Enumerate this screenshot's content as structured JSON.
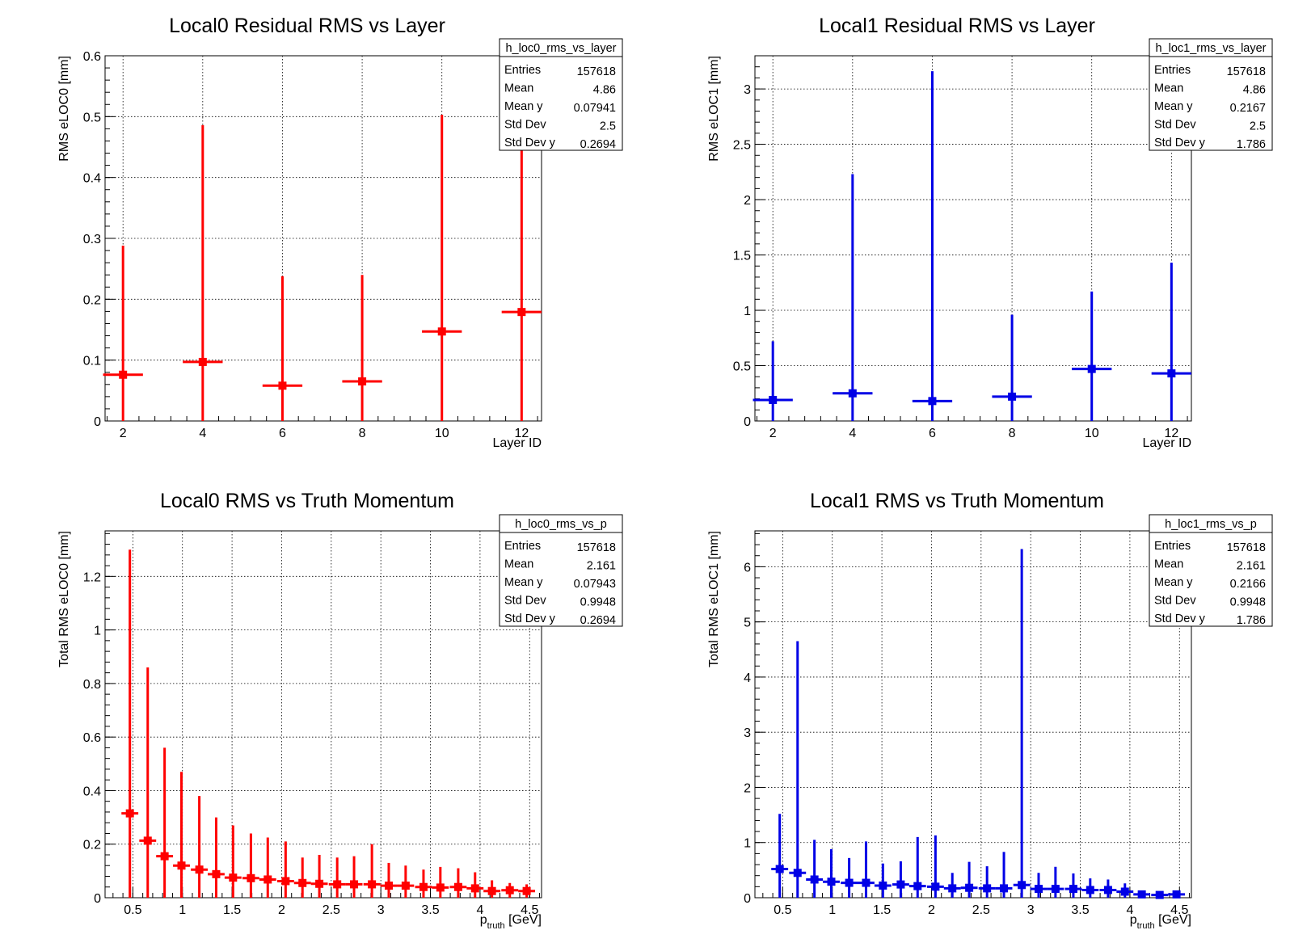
{
  "colors": {
    "red": "#ff0000",
    "blue": "#0000e6",
    "frame": "#000000",
    "grid": "#000000"
  },
  "chart_data": [
    {
      "type": "scatter",
      "id": "loc0-layer",
      "title": "Local0 Residual RMS vs Layer",
      "xlabel": "Layer ID",
      "ylabel": "RMS eLOC0 [mm]",
      "xlim": [
        1.55,
        12.5
      ],
      "ylim": [
        0,
        0.6
      ],
      "xticks": [
        "2",
        "4",
        "6",
        "8",
        "10",
        "12"
      ],
      "xtick_values": [
        2,
        4,
        6,
        8,
        10,
        12
      ],
      "yticks": [
        "0",
        "0.1",
        "0.2",
        "0.3",
        "0.4",
        "0.5",
        "0.6"
      ],
      "ytick_values": [
        0,
        0.1,
        0.2,
        0.3,
        0.4,
        0.5,
        0.6
      ],
      "grid": true,
      "color": "red",
      "stats": {
        "name": "h_loc0_rms_vs_layer",
        "rows": [
          [
            "Entries",
            "157618"
          ],
          [
            "Mean",
            "4.86"
          ],
          [
            "Mean y",
            "0.07941"
          ],
          [
            "Std Dev",
            "2.5"
          ],
          [
            "Std Dev y",
            "0.2694"
          ]
        ]
      },
      "points": [
        {
          "x": 2,
          "xerr": 0.5,
          "y": 0.076,
          "ylo": 0,
          "yhi": 0.288
        },
        {
          "x": 4,
          "xerr": 0.5,
          "y": 0.097,
          "ylo": 0,
          "yhi": 0.486
        },
        {
          "x": 6,
          "xerr": 0.5,
          "y": 0.058,
          "ylo": 0,
          "yhi": 0.238
        },
        {
          "x": 8,
          "xerr": 0.5,
          "y": 0.065,
          "ylo": 0,
          "yhi": 0.24
        },
        {
          "x": 10,
          "xerr": 0.5,
          "y": 0.147,
          "ylo": 0,
          "yhi": 0.503
        },
        {
          "x": 12,
          "xerr": 0.5,
          "y": 0.179,
          "ylo": 0,
          "yhi": 0.55
        }
      ]
    },
    {
      "type": "scatter",
      "id": "loc1-layer",
      "title": "Local1 Residual RMS vs Layer",
      "xlabel": "Layer ID",
      "ylabel": "RMS eLOC1 [mm]",
      "xlim": [
        1.55,
        12.5
      ],
      "ylim": [
        0,
        3.3
      ],
      "xticks": [
        "2",
        "4",
        "6",
        "8",
        "10",
        "12"
      ],
      "xtick_values": [
        2,
        4,
        6,
        8,
        10,
        12
      ],
      "yticks": [
        "0",
        "0.5",
        "1",
        "1.5",
        "2",
        "2.5",
        "3"
      ],
      "ytick_values": [
        0,
        0.5,
        1,
        1.5,
        2,
        2.5,
        3
      ],
      "grid": true,
      "color": "blue",
      "stats": {
        "name": "h_loc1_rms_vs_layer",
        "rows": [
          [
            "Entries",
            "157618"
          ],
          [
            "Mean",
            "4.86"
          ],
          [
            "Mean y",
            "0.2167"
          ],
          [
            "Std Dev",
            "2.5"
          ],
          [
            "Std Dev y",
            "1.786"
          ]
        ]
      },
      "points": [
        {
          "x": 2,
          "xerr": 0.5,
          "y": 0.19,
          "ylo": 0,
          "yhi": 0.72
        },
        {
          "x": 4,
          "xerr": 0.5,
          "y": 0.25,
          "ylo": 0,
          "yhi": 2.23
        },
        {
          "x": 6,
          "xerr": 0.5,
          "y": 0.18,
          "ylo": 0,
          "yhi": 3.16
        },
        {
          "x": 8,
          "xerr": 0.5,
          "y": 0.22,
          "ylo": 0,
          "yhi": 0.96
        },
        {
          "x": 10,
          "xerr": 0.5,
          "y": 0.47,
          "ylo": 0,
          "yhi": 1.17
        },
        {
          "x": 12,
          "xerr": 0.5,
          "y": 0.43,
          "ylo": 0,
          "yhi": 1.43
        }
      ]
    },
    {
      "type": "scatter",
      "id": "loc0-p",
      "title": "Local0 RMS vs Truth Momentum",
      "xlabel": "p",
      "xlabel_sub": "truth",
      "xlabel_unit": " [GeV]",
      "ylabel": "Total RMS eLOC0 [mm]",
      "xlim": [
        0.22,
        4.62
      ],
      "ylim": [
        0,
        1.37
      ],
      "xticks": [
        "0.5",
        "1",
        "1.5",
        "2",
        "2.5",
        "3",
        "3.5",
        "4",
        "4.5"
      ],
      "xtick_values": [
        0.5,
        1,
        1.5,
        2,
        2.5,
        3,
        3.5,
        4,
        4.5
      ],
      "yticks": [
        "0",
        "0.2",
        "0.4",
        "0.6",
        "0.8",
        "1",
        "1.2"
      ],
      "ytick_values": [
        0,
        0.2,
        0.4,
        0.6,
        0.8,
        1,
        1.2
      ],
      "grid": true,
      "color": "red",
      "stats": {
        "name": "h_loc0_rms_vs_p",
        "rows": [
          [
            "Entries",
            "157618"
          ],
          [
            "Mean",
            "2.161"
          ],
          [
            "Mean y",
            "0.07943"
          ],
          [
            "Std Dev",
            "0.9948"
          ],
          [
            "Std Dev y",
            "0.2694"
          ]
        ]
      },
      "points": [
        {
          "x": 0.47,
          "xerr": 0.085,
          "y": 0.315,
          "ylo": 0,
          "yhi": 1.3
        },
        {
          "x": 0.65,
          "xerr": 0.085,
          "y": 0.213,
          "ylo": 0,
          "yhi": 0.86
        },
        {
          "x": 0.82,
          "xerr": 0.085,
          "y": 0.155,
          "ylo": 0,
          "yhi": 0.56
        },
        {
          "x": 0.99,
          "xerr": 0.085,
          "y": 0.12,
          "ylo": 0,
          "yhi": 0.47
        },
        {
          "x": 1.17,
          "xerr": 0.085,
          "y": 0.105,
          "ylo": 0,
          "yhi": 0.38
        },
        {
          "x": 1.34,
          "xerr": 0.085,
          "y": 0.088,
          "ylo": 0,
          "yhi": 0.3
        },
        {
          "x": 1.51,
          "xerr": 0.085,
          "y": 0.075,
          "ylo": 0,
          "yhi": 0.27
        },
        {
          "x": 1.69,
          "xerr": 0.085,
          "y": 0.073,
          "ylo": 0,
          "yhi": 0.24
        },
        {
          "x": 1.86,
          "xerr": 0.085,
          "y": 0.068,
          "ylo": 0,
          "yhi": 0.225
        },
        {
          "x": 2.04,
          "xerr": 0.085,
          "y": 0.062,
          "ylo": 0,
          "yhi": 0.21
        },
        {
          "x": 2.21,
          "xerr": 0.085,
          "y": 0.055,
          "ylo": 0,
          "yhi": 0.15
        },
        {
          "x": 2.38,
          "xerr": 0.085,
          "y": 0.052,
          "ylo": 0,
          "yhi": 0.16
        },
        {
          "x": 2.56,
          "xerr": 0.085,
          "y": 0.05,
          "ylo": 0,
          "yhi": 0.15
        },
        {
          "x": 2.73,
          "xerr": 0.085,
          "y": 0.05,
          "ylo": 0,
          "yhi": 0.155
        },
        {
          "x": 2.91,
          "xerr": 0.085,
          "y": 0.05,
          "ylo": 0,
          "yhi": 0.2
        },
        {
          "x": 3.08,
          "xerr": 0.085,
          "y": 0.045,
          "ylo": 0,
          "yhi": 0.13
        },
        {
          "x": 3.25,
          "xerr": 0.085,
          "y": 0.045,
          "ylo": 0,
          "yhi": 0.12
        },
        {
          "x": 3.43,
          "xerr": 0.085,
          "y": 0.04,
          "ylo": 0,
          "yhi": 0.105
        },
        {
          "x": 3.6,
          "xerr": 0.085,
          "y": 0.038,
          "ylo": 0,
          "yhi": 0.115
        },
        {
          "x": 3.78,
          "xerr": 0.085,
          "y": 0.04,
          "ylo": 0,
          "yhi": 0.11
        },
        {
          "x": 3.95,
          "xerr": 0.085,
          "y": 0.035,
          "ylo": 0,
          "yhi": 0.095
        },
        {
          "x": 4.12,
          "xerr": 0.085,
          "y": 0.025,
          "ylo": 0,
          "yhi": 0.065
        },
        {
          "x": 4.3,
          "xerr": 0.085,
          "y": 0.028,
          "ylo": 0,
          "yhi": 0.055
        },
        {
          "x": 4.47,
          "xerr": 0.085,
          "y": 0.025,
          "ylo": 0,
          "yhi": 0.05
        }
      ]
    },
    {
      "type": "scatter",
      "id": "loc1-p",
      "title": "Local1 RMS vs Truth Momentum",
      "xlabel": "p",
      "xlabel_sub": "truth",
      "xlabel_unit": " [GeV]",
      "ylabel": "Total RMS eLOC1 [mm]",
      "xlim": [
        0.22,
        4.62
      ],
      "ylim": [
        0,
        6.65
      ],
      "xticks": [
        "0.5",
        "1",
        "1.5",
        "2",
        "2.5",
        "3",
        "3.5",
        "4",
        "4.5"
      ],
      "xtick_values": [
        0.5,
        1,
        1.5,
        2,
        2.5,
        3,
        3.5,
        4,
        4.5
      ],
      "yticks": [
        "0",
        "1",
        "2",
        "3",
        "4",
        "5",
        "6"
      ],
      "ytick_values": [
        0,
        1,
        2,
        3,
        4,
        5,
        6
      ],
      "grid": true,
      "color": "blue",
      "stats": {
        "name": "h_loc1_rms_vs_p",
        "rows": [
          [
            "Entries",
            "157618"
          ],
          [
            "Mean",
            "2.161"
          ],
          [
            "Mean y",
            "0.2166"
          ],
          [
            "Std Dev",
            "0.9948"
          ],
          [
            "Std Dev y",
            "1.786"
          ]
        ]
      },
      "points": [
        {
          "x": 0.47,
          "xerr": 0.085,
          "y": 0.52,
          "ylo": 0,
          "yhi": 1.52
        },
        {
          "x": 0.65,
          "xerr": 0.085,
          "y": 0.45,
          "ylo": 0,
          "yhi": 4.65
        },
        {
          "x": 0.82,
          "xerr": 0.085,
          "y": 0.33,
          "ylo": 0,
          "yhi": 1.05
        },
        {
          "x": 0.99,
          "xerr": 0.085,
          "y": 0.29,
          "ylo": 0,
          "yhi": 0.88
        },
        {
          "x": 1.17,
          "xerr": 0.085,
          "y": 0.27,
          "ylo": 0,
          "yhi": 0.72
        },
        {
          "x": 1.34,
          "xerr": 0.085,
          "y": 0.27,
          "ylo": 0,
          "yhi": 1.02
        },
        {
          "x": 1.51,
          "xerr": 0.085,
          "y": 0.22,
          "ylo": 0,
          "yhi": 0.62
        },
        {
          "x": 1.69,
          "xerr": 0.085,
          "y": 0.24,
          "ylo": 0,
          "yhi": 0.66
        },
        {
          "x": 1.86,
          "xerr": 0.085,
          "y": 0.21,
          "ylo": 0,
          "yhi": 1.1
        },
        {
          "x": 2.04,
          "xerr": 0.085,
          "y": 0.2,
          "ylo": 0,
          "yhi": 1.13
        },
        {
          "x": 2.21,
          "xerr": 0.085,
          "y": 0.17,
          "ylo": 0,
          "yhi": 0.45
        },
        {
          "x": 2.38,
          "xerr": 0.085,
          "y": 0.18,
          "ylo": 0,
          "yhi": 0.65
        },
        {
          "x": 2.56,
          "xerr": 0.085,
          "y": 0.17,
          "ylo": 0,
          "yhi": 0.57
        },
        {
          "x": 2.73,
          "xerr": 0.085,
          "y": 0.17,
          "ylo": 0,
          "yhi": 0.83
        },
        {
          "x": 2.91,
          "xerr": 0.085,
          "y": 0.23,
          "ylo": 0,
          "yhi": 6.32
        },
        {
          "x": 3.08,
          "xerr": 0.085,
          "y": 0.16,
          "ylo": 0,
          "yhi": 0.45
        },
        {
          "x": 3.25,
          "xerr": 0.085,
          "y": 0.16,
          "ylo": 0,
          "yhi": 0.56
        },
        {
          "x": 3.43,
          "xerr": 0.085,
          "y": 0.16,
          "ylo": 0,
          "yhi": 0.44
        },
        {
          "x": 3.6,
          "xerr": 0.085,
          "y": 0.14,
          "ylo": 0,
          "yhi": 0.35
        },
        {
          "x": 3.78,
          "xerr": 0.085,
          "y": 0.14,
          "ylo": 0,
          "yhi": 0.33
        },
        {
          "x": 3.95,
          "xerr": 0.085,
          "y": 0.11,
          "ylo": 0,
          "yhi": 0.26
        },
        {
          "x": 4.12,
          "xerr": 0.085,
          "y": 0.06,
          "ylo": 0,
          "yhi": 0.1
        },
        {
          "x": 4.3,
          "xerr": 0.085,
          "y": 0.05,
          "ylo": 0,
          "yhi": 0.08
        },
        {
          "x": 4.47,
          "xerr": 0.085,
          "y": 0.06,
          "ylo": 0,
          "yhi": 0.1
        }
      ]
    }
  ]
}
